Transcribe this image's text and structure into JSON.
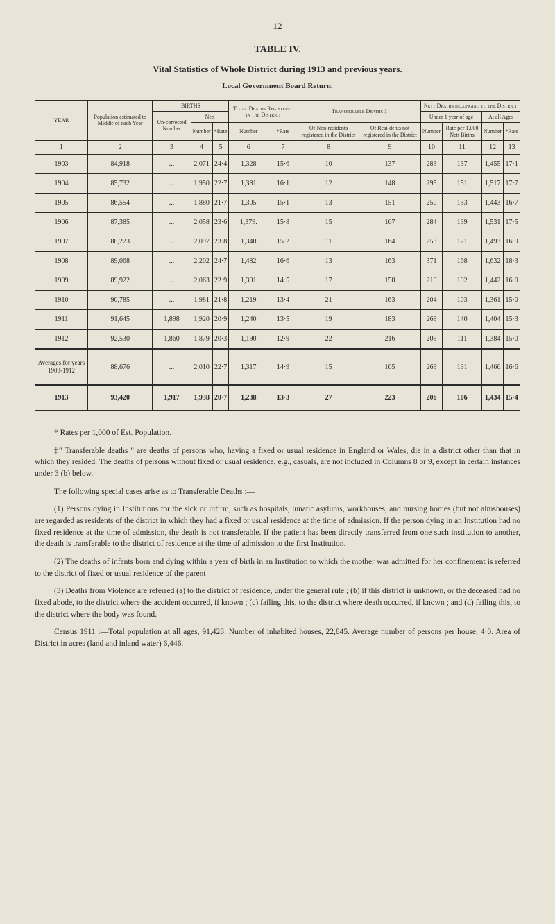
{
  "page_number": "12",
  "table_title": "TABLE IV.",
  "subtitle": "Vital Statistics of Whole District during 1913 and previous years.",
  "subheading": "Local Government Board Return.",
  "headers": {
    "year": "YEAR",
    "population": "Population estimated to Middle of each Year",
    "births": "BIRTHS",
    "uncorrected": "Un-corrected Number",
    "nett": "Nett",
    "nett_number": "Number",
    "nett_rate": "*Rate",
    "total_deaths": "Total Deaths Registered in the District",
    "td_number": "Number",
    "td_rate": "*Rate",
    "transferable": "Transferable Deaths ‡",
    "tr_nonres": "Of Non-residents registered in the District",
    "tr_res": "Of Resi-dents not registered in the District",
    "nett_deaths": "Nett Deaths belonging to the District",
    "under1": "Under 1 year of age",
    "u1_number": "Number",
    "u1_rate": "Rate per 1,000 Nett Births",
    "allages": "At all Ages",
    "aa_number": "Number",
    "aa_rate": "*Rate"
  },
  "numrow": [
    "1",
    "2",
    "3",
    "4",
    "5",
    "6",
    "7",
    "8",
    "9",
    "10",
    "11",
    "12",
    "13"
  ],
  "rows": [
    {
      "year": "1903",
      "pop": "84,918",
      "uncorr": "...",
      "nett_num": "2,071",
      "nett_rate": "24·4",
      "td_num": "1,328",
      "td_rate": "15·6",
      "nonres": "10",
      "res": "137",
      "u1_num": "283",
      "u1_rate": "137",
      "aa_num": "1,455",
      "aa_rate": "17·1"
    },
    {
      "year": "1904",
      "pop": "85,732",
      "uncorr": "...",
      "nett_num": "1,950",
      "nett_rate": "22·7",
      "td_num": "1,381",
      "td_rate": "16·1",
      "nonres": "12",
      "res": "148",
      "u1_num": "295",
      "u1_rate": "151",
      "aa_num": "1,517",
      "aa_rate": "17·7"
    },
    {
      "year": "1905",
      "pop": "86,554",
      "uncorr": "...",
      "nett_num": "1,880",
      "nett_rate": "21·7",
      "td_num": "1,305",
      "td_rate": "15·1",
      "nonres": "13",
      "res": "151",
      "u1_num": "250",
      "u1_rate": "133",
      "aa_num": "1,443",
      "aa_rate": "16·7"
    },
    {
      "year": "1906",
      "pop": "87,385",
      "uncorr": "...",
      "nett_num": "2,058",
      "nett_rate": "23·6",
      "td_num": "1,379.",
      "td_rate": "15·8",
      "nonres": "15",
      "res": "167",
      "u1_num": "284",
      "u1_rate": "139",
      "aa_num": "1,531",
      "aa_rate": "17·5"
    },
    {
      "year": "1907",
      "pop": "88,223",
      "uncorr": "...",
      "nett_num": "2,097",
      "nett_rate": "23·8",
      "td_num": "1,340",
      "td_rate": "15·2",
      "nonres": "11",
      "res": "164",
      "u1_num": "253",
      "u1_rate": "121",
      "aa_num": "1,493",
      "aa_rate": "16·9"
    },
    {
      "year": "1908",
      "pop": "89,068",
      "uncorr": "...",
      "nett_num": "2,202",
      "nett_rate": "24·7",
      "td_num": "1,482",
      "td_rate": "16·6",
      "nonres": "13",
      "res": "163",
      "u1_num": "371",
      "u1_rate": "168",
      "aa_num": "1,632",
      "aa_rate": "18·3"
    },
    {
      "year": "1909",
      "pop": "89,922",
      "uncorr": "...",
      "nett_num": "2,063",
      "nett_rate": "22·9",
      "td_num": "1,301",
      "td_rate": "14·5",
      "nonres": "17",
      "res": "158",
      "u1_num": "210",
      "u1_rate": "102",
      "aa_num": "1,442",
      "aa_rate": "16·0"
    },
    {
      "year": "1910",
      "pop": "90,785",
      "uncorr": "...",
      "nett_num": "1,981",
      "nett_rate": "21·8",
      "td_num": "1,219",
      "td_rate": "13·4",
      "nonres": "21",
      "res": "163",
      "u1_num": "204",
      "u1_rate": "103",
      "aa_num": "1,361",
      "aa_rate": "15·0"
    },
    {
      "year": "1911",
      "pop": "91,645",
      "uncorr": "1,898",
      "nett_num": "1,920",
      "nett_rate": "20·9",
      "td_num": "1,240",
      "td_rate": "13·5",
      "nonres": "19",
      "res": "183",
      "u1_num": "268",
      "u1_rate": "140",
      "aa_num": "1,404",
      "aa_rate": "15·3"
    },
    {
      "year": "1912",
      "pop": "92,530",
      "uncorr": "1,860",
      "nett_num": "1,879",
      "nett_rate": "20·3",
      "td_num": "1,190",
      "td_rate": "12·9",
      "nonres": "22",
      "res": "216",
      "u1_num": "209",
      "u1_rate": "111",
      "aa_num": "1,384",
      "aa_rate": "15·0"
    }
  ],
  "avg_row": {
    "year": "Averages for years 1903-1912",
    "pop": "88,676",
    "uncorr": "...",
    "nett_num": "2,010",
    "nett_rate": "22·7",
    "td_num": "1,317",
    "td_rate": "14·9",
    "nonres": "15",
    "res": "165",
    "u1_num": "263",
    "u1_rate": "131",
    "aa_num": "1,466",
    "aa_rate": "16·6"
  },
  "final_row": {
    "year": "1913",
    "pop": "93,420",
    "uncorr": "1,917",
    "nett_num": "1,938",
    "nett_rate": "20·7",
    "td_num": "1,238",
    "td_rate": "13·3",
    "nonres": "27",
    "res": "223",
    "u1_num": "206",
    "u1_rate": "106",
    "aa_num": "1,434",
    "aa_rate": "15·4"
  },
  "footnote1": "* Rates per 1,000 of Est. Population.",
  "p1": "‡\" Transferable deaths \" are deaths of persons who, having a fixed or usual residence in England or Wales, die in a district other than that in which they resided. The deaths of persons without fixed or usual residence, e.g., casuals, are not included in Columns 8 or 9, except in certain instances under 3 (b) below.",
  "p2": "The following special cases arise as to Transferable Deaths :—",
  "p3": "(1) Persons dying in Institutions for the sick or infirm, such as hospitals, lunatic asylums, workhouses, and nursing homes (but not almshouses) are regarded as residents of the district in which they had a fixed or usual residence at the time of admission. If the person dying in an Institution had no fixed residence at the time of admission, the death is not transferable. If the patient has been directly transferred from one such institution to another, the death is transferable to the district of residence at the time of admission to the first Institution.",
  "p4": "(2) The deaths of infants born and dying within a year of birth in an Institution to which the mother was admitted for her confinement is referred to the district of fixed or usual residence of the parent",
  "p5": "(3) Deaths from Violence are referred (a) to the district of residence, under the general rule ; (b) if this district is unknown, or the deceased had no fixed abode, to the district where the accident occurred, if known ; (c) failing this, to the district where death occurred, if known ; and (d) failing this, to the district where the body was found.",
  "p6": "Census 1911 :—Total population at all ages, 91,428. Number of inhabited houses, 22,845. Average number of persons per house, 4·0. Area of District in acres (land and inland water) 6,446."
}
